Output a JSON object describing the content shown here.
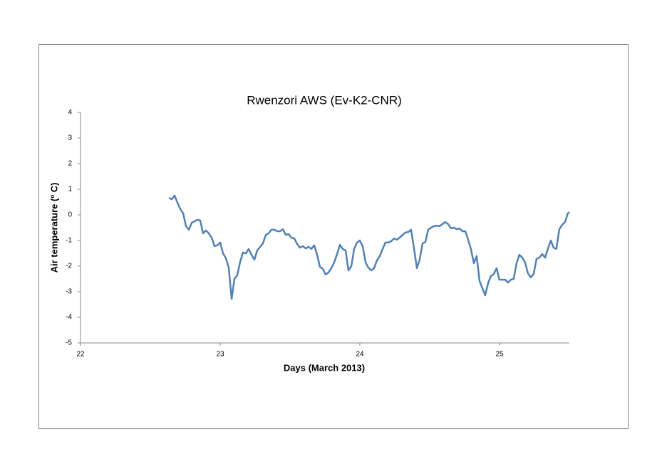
{
  "chart_data": {
    "type": "line",
    "title": "Rwenzori AWS (Ev-K2-CNR)",
    "x_label": "Days (March 2013)",
    "y_label": "Air temperature (º C)",
    "xlim": [
      22,
      25.5
    ],
    "xticks": [
      22,
      23,
      24,
      25
    ],
    "ylim": [
      -5,
      4
    ],
    "yticks": [
      -5,
      -4,
      -3,
      -2,
      -1,
      0,
      1,
      2,
      3,
      4
    ],
    "grid": false,
    "x": [
      22.633,
      22.653,
      22.674,
      22.694,
      22.715,
      22.735,
      22.755,
      22.776,
      22.796,
      22.817,
      22.837,
      22.857,
      22.878,
      22.898,
      22.918,
      22.939,
      22.959,
      22.98,
      23.0,
      23.02,
      23.041,
      23.061,
      23.082,
      23.102,
      23.122,
      23.143,
      23.163,
      23.184,
      23.204,
      23.224,
      23.245,
      23.265,
      23.286,
      23.306,
      23.327,
      23.347,
      23.367,
      23.388,
      23.408,
      23.429,
      23.449,
      23.469,
      23.49,
      23.51,
      23.531,
      23.551,
      23.571,
      23.592,
      23.612,
      23.633,
      23.653,
      23.673,
      23.694,
      23.714,
      23.735,
      23.755,
      23.775,
      23.796,
      23.816,
      23.837,
      23.857,
      23.877,
      23.898,
      23.918,
      23.939,
      23.959,
      23.979,
      24.0,
      24.02,
      24.041,
      24.061,
      24.081,
      24.102,
      24.122,
      24.143,
      24.163,
      24.183,
      24.204,
      24.224,
      24.245,
      24.265,
      24.285,
      24.306,
      24.326,
      24.347,
      24.367,
      24.387,
      24.408,
      24.428,
      24.449,
      24.469,
      24.489,
      24.51,
      24.53,
      24.551,
      24.571,
      24.591,
      24.612,
      24.632,
      24.653,
      24.673,
      24.693,
      24.714,
      24.734,
      24.755,
      24.775,
      24.795,
      24.816,
      24.836,
      24.857,
      24.877,
      24.897,
      24.918,
      24.938,
      24.959,
      24.979,
      24.999,
      25.02,
      25.04,
      25.061,
      25.081,
      25.101,
      25.122,
      25.142,
      25.163,
      25.183,
      25.203,
      25.224,
      25.244,
      25.265,
      25.285,
      25.305,
      25.326,
      25.346,
      25.367,
      25.387,
      25.407,
      25.428,
      25.448,
      25.469,
      25.489,
      25.5
    ],
    "series": [
      {
        "name": "Air temperature",
        "color": "#4f81bd",
        "values": [
          0.67,
          0.61,
          0.75,
          0.47,
          0.22,
          0.06,
          -0.44,
          -0.58,
          -0.31,
          -0.25,
          -0.19,
          -0.22,
          -0.72,
          -0.61,
          -0.72,
          -0.89,
          -1.22,
          -1.19,
          -1.08,
          -1.5,
          -1.69,
          -2.06,
          -3.28,
          -2.5,
          -2.36,
          -1.83,
          -1.47,
          -1.5,
          -1.33,
          -1.56,
          -1.75,
          -1.39,
          -1.25,
          -1.11,
          -0.78,
          -0.72,
          -0.58,
          -0.58,
          -0.64,
          -0.64,
          -0.56,
          -0.78,
          -0.75,
          -0.89,
          -0.92,
          -1.14,
          -1.28,
          -1.22,
          -1.31,
          -1.25,
          -1.33,
          -1.19,
          -1.56,
          -2.03,
          -2.11,
          -2.33,
          -2.25,
          -2.08,
          -1.86,
          -1.53,
          -1.17,
          -1.33,
          -1.39,
          -2.17,
          -2.0,
          -1.33,
          -1.08,
          -1.0,
          -1.22,
          -1.86,
          -2.06,
          -2.17,
          -2.08,
          -1.78,
          -1.61,
          -1.33,
          -1.08,
          -1.08,
          -1.03,
          -0.92,
          -0.97,
          -0.89,
          -0.78,
          -0.69,
          -0.67,
          -0.58,
          -1.28,
          -2.08,
          -1.75,
          -1.11,
          -1.06,
          -0.58,
          -0.5,
          -0.44,
          -0.42,
          -0.44,
          -0.36,
          -0.28,
          -0.36,
          -0.53,
          -0.5,
          -0.56,
          -0.53,
          -0.64,
          -0.64,
          -0.97,
          -1.33,
          -1.89,
          -1.61,
          -2.58,
          -2.86,
          -3.14,
          -2.67,
          -2.39,
          -2.31,
          -2.08,
          -2.53,
          -2.53,
          -2.53,
          -2.64,
          -2.53,
          -2.5,
          -1.89,
          -1.56,
          -1.67,
          -1.86,
          -2.28,
          -2.44,
          -2.31,
          -1.72,
          -1.67,
          -1.53,
          -1.67,
          -1.33,
          -1.0,
          -1.28,
          -1.33,
          -0.56,
          -0.39,
          -0.28,
          0.06,
          0.11
        ]
      }
    ]
  }
}
